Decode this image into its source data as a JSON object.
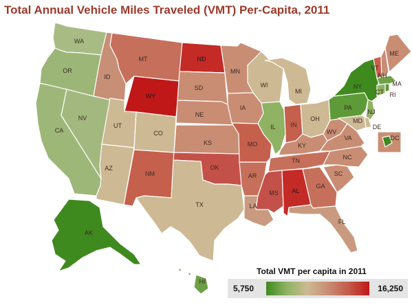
{
  "title": "Total Annual Vehicle Miles Traveled (VMT) Per-Capita, 2011",
  "legend": {
    "title": "Total VMT per capita in 2011",
    "min_label": "5,750",
    "max_label": "16,250",
    "min": 5750,
    "max": 16250,
    "colors": [
      "#3f8a1f",
      "#8fb362",
      "#cdb993",
      "#c98d74",
      "#c25a47",
      "#c01818"
    ]
  },
  "states": [
    {
      "abbr": "WA",
      "color": "#a8bb84"
    },
    {
      "abbr": "OR",
      "color": "#9cb677"
    },
    {
      "abbr": "CA",
      "color": "#9db778"
    },
    {
      "abbr": "NV",
      "color": "#a3b87e"
    },
    {
      "abbr": "ID",
      "color": "#c78f76"
    },
    {
      "abbr": "MT",
      "color": "#c6705c"
    },
    {
      "abbr": "WY",
      "color": "#c01818"
    },
    {
      "abbr": "UT",
      "color": "#cdb993"
    },
    {
      "abbr": "AZ",
      "color": "#cdb993"
    },
    {
      "abbr": "CO",
      "color": "#cdb993"
    },
    {
      "abbr": "NM",
      "color": "#c5604d"
    },
    {
      "abbr": "ND",
      "color": "#c42a26"
    },
    {
      "abbr": "SD",
      "color": "#c98d74"
    },
    {
      "abbr": "NE",
      "color": "#c98d74"
    },
    {
      "abbr": "KS",
      "color": "#c98d74"
    },
    {
      "abbr": "OK",
      "color": "#c4504a"
    },
    {
      "abbr": "TX",
      "color": "#cdb993"
    },
    {
      "abbr": "MN",
      "color": "#c98d74"
    },
    {
      "abbr": "IA",
      "color": "#c98d74"
    },
    {
      "abbr": "MO",
      "color": "#c5604d"
    },
    {
      "abbr": "AR",
      "color": "#c6705c"
    },
    {
      "abbr": "LA",
      "color": "#c99a80"
    },
    {
      "abbr": "WI",
      "color": "#cdb993"
    },
    {
      "abbr": "IL",
      "color": "#8fb362"
    },
    {
      "abbr": "MI",
      "color": "#cdb993"
    },
    {
      "abbr": "IN",
      "color": "#c5604d"
    },
    {
      "abbr": "OH",
      "color": "#cdb993"
    },
    {
      "abbr": "KY",
      "color": "#c98d74"
    },
    {
      "abbr": "TN",
      "color": "#c6705c"
    },
    {
      "abbr": "MS",
      "color": "#c4504a"
    },
    {
      "abbr": "AL",
      "color": "#c42a26"
    },
    {
      "abbr": "GA",
      "color": "#c6705c"
    },
    {
      "abbr": "FL",
      "color": "#c99a80"
    },
    {
      "abbr": "SC",
      "color": "#c98d74"
    },
    {
      "abbr": "NC",
      "color": "#c98d74"
    },
    {
      "abbr": "VA",
      "color": "#c98d74"
    },
    {
      "abbr": "WV",
      "color": "#c98d74"
    },
    {
      "abbr": "PA",
      "color": "#5e9a37"
    },
    {
      "abbr": "NY",
      "color": "#3f8a1f"
    },
    {
      "abbr": "VT",
      "color": "#c5604d"
    },
    {
      "abbr": "NH",
      "color": "#c98d74"
    },
    {
      "abbr": "ME",
      "color": "#c98d74"
    },
    {
      "abbr": "MA",
      "color": "#6ea048"
    },
    {
      "abbr": "RI",
      "color": "#5e9a37"
    },
    {
      "abbr": "CT",
      "color": "#8fb362"
    },
    {
      "abbr": "NJ",
      "color": "#8fb362"
    },
    {
      "abbr": "DE",
      "color": "#cdb993"
    },
    {
      "abbr": "MD",
      "color": "#cdb993"
    },
    {
      "abbr": "DC",
      "color": "#3f8a1f"
    },
    {
      "abbr": "AK",
      "color": "#3f8a1f"
    },
    {
      "abbr": "HI",
      "color": "#6ea048"
    }
  ]
}
